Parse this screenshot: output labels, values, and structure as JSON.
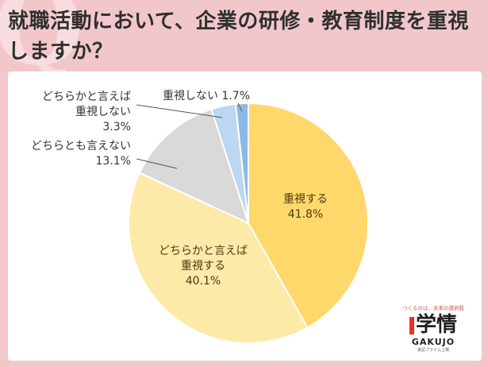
{
  "title": "就職活動において、企業の研修・教育制度を重視しますか？",
  "chart_data": {
    "type": "pie",
    "title": "就職活動において、企業の研修・教育制度を重視しますか？",
    "slices": [
      {
        "label_lines": [
          "重視する"
        ],
        "value": 41.8,
        "value_text": "41.8%",
        "color": "#ffd86b"
      },
      {
        "label_lines": [
          "どちらかと言えば",
          "重視する"
        ],
        "value": 40.1,
        "value_text": "40.1%",
        "color": "#fde9a8"
      },
      {
        "label_lines": [
          "どちらとも言えない"
        ],
        "value": 13.1,
        "value_text": "13.1%",
        "color": "#d9d9d9"
      },
      {
        "label_lines": [
          "どちらかと言えば",
          "重視しない"
        ],
        "value": 3.3,
        "value_text": "3.3%",
        "color": "#bcd7f0"
      },
      {
        "label_lines": [
          "重視しない"
        ],
        "value": 1.7,
        "value_text": "1.7%",
        "color": "#8ab9e6"
      }
    ]
  },
  "brand": {
    "tagline": "つくるのは、未来の選択肢",
    "name_kanji": "学情",
    "name_roman": "GAKUJO",
    "sub": "東証プライム上場"
  }
}
